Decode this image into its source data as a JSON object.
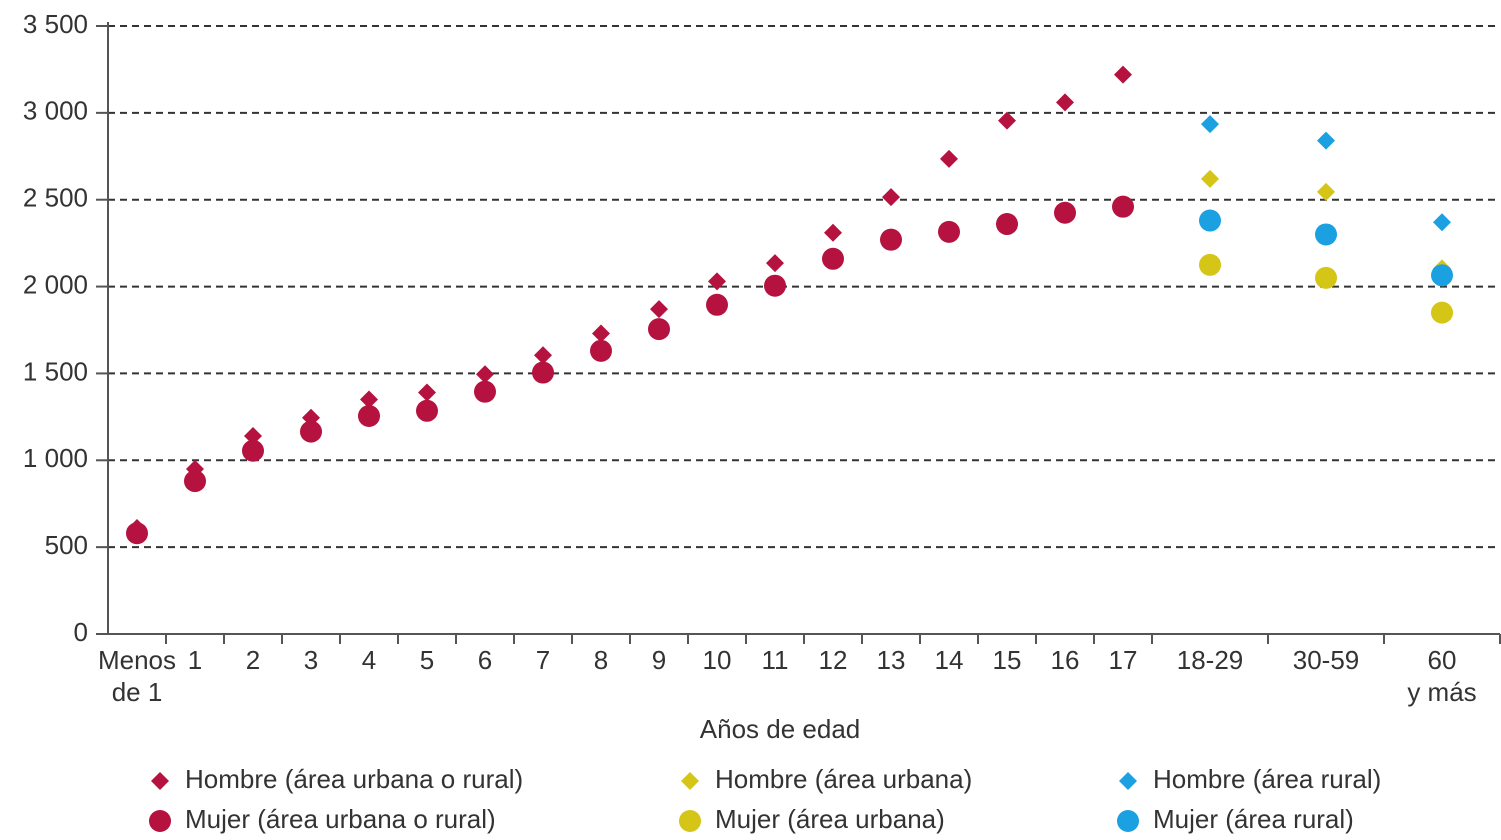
{
  "chart_data": {
    "type": "scatter",
    "x_label": "Años de edad",
    "categories": [
      [
        "Menos",
        "de 1"
      ],
      "1",
      "2",
      "3",
      "4",
      "5",
      "6",
      "7",
      "8",
      "9",
      "10",
      "11",
      "12",
      "13",
      "14",
      "15",
      "16",
      "17",
      "18-29",
      "30-59",
      [
        "60",
        "y más"
      ]
    ],
    "series": [
      {
        "name": "Hombre (área urbana o rural)",
        "color": "#b5123f",
        "marker": "diamond",
        "values": [
          610,
          950,
          1140,
          1245,
          1350,
          1390,
          1495,
          1605,
          1730,
          1870,
          2030,
          2135,
          2310,
          2515,
          2735,
          2955,
          3060,
          3220,
          null,
          null,
          null
        ]
      },
      {
        "name": "Mujer (área urbana o rural)",
        "color": "#b5123f",
        "marker": "circle",
        "values": [
          580,
          880,
          1055,
          1165,
          1255,
          1285,
          1395,
          1505,
          1630,
          1755,
          1895,
          2005,
          2160,
          2270,
          2315,
          2360,
          2425,
          2460,
          null,
          null,
          null
        ]
      },
      {
        "name": "Hombre (área urbana)",
        "color": "#d4c516",
        "marker": "diamond",
        "values": [
          null,
          null,
          null,
          null,
          null,
          null,
          null,
          null,
          null,
          null,
          null,
          null,
          null,
          null,
          null,
          null,
          null,
          null,
          2620,
          2545,
          2105
        ]
      },
      {
        "name": "Mujer (área urbana)",
        "color": "#d4c516",
        "marker": "circle",
        "values": [
          null,
          null,
          null,
          null,
          null,
          null,
          null,
          null,
          null,
          null,
          null,
          null,
          null,
          null,
          null,
          null,
          null,
          null,
          2125,
          2050,
          1850
        ]
      },
      {
        "name": "Hombre (área rural)",
        "color": "#1ba0e2",
        "marker": "diamond",
        "values": [
          null,
          null,
          null,
          null,
          null,
          null,
          null,
          null,
          null,
          null,
          null,
          null,
          null,
          null,
          null,
          null,
          null,
          null,
          2935,
          2840,
          2370
        ]
      },
      {
        "name": "Mujer (área rural)",
        "color": "#1ba0e2",
        "marker": "circle",
        "values": [
          null,
          null,
          null,
          null,
          null,
          null,
          null,
          null,
          null,
          null,
          null,
          null,
          null,
          null,
          null,
          null,
          null,
          null,
          2380,
          2300,
          2065
        ]
      }
    ],
    "ylim": [
      0,
      3500
    ],
    "yticks": [
      0,
      500,
      {
        "value": 1000,
        "label": "1 000"
      },
      {
        "value": 1500,
        "label": "1 500"
      },
      {
        "value": 2000,
        "label": "2 000"
      },
      {
        "value": 2500,
        "label": "2 500"
      },
      {
        "value": 3000,
        "label": "3 000"
      },
      {
        "value": 3500,
        "label": "3 500"
      }
    ],
    "grid": true
  }
}
